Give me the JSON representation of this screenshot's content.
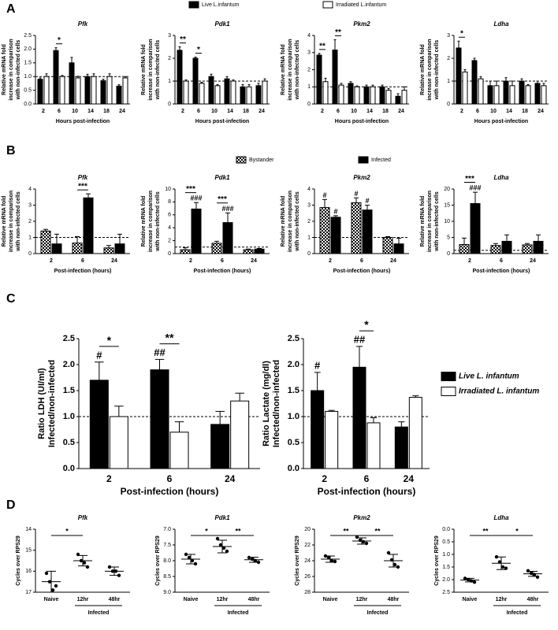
{
  "panel_labels": [
    "A",
    "B",
    "C",
    "D"
  ],
  "chart_data": [
    {
      "type": "bar",
      "title": "Pfk",
      "ylabel": [
        "Relative mRNA fold",
        "increase in comparison",
        "with non-infected cells"
      ],
      "xlabel": "Hours post-infection",
      "categories": [
        "2",
        "6",
        "10",
        "14",
        "18",
        "24"
      ],
      "ylim": [
        0,
        2.5
      ],
      "yticks": [
        {
          "value": 0,
          "label": "0.0"
        },
        0.5,
        {
          "value": 1,
          "label": "1.0"
        },
        1.5,
        {
          "value": 2,
          "label": "2.0"
        },
        2.5
      ],
      "reference_line": 1,
      "series": [
        {
          "name": "Live L.infantum",
          "color": "#000000",
          "values": [
            0.9,
            1.95,
            1.5,
            1.0,
            0.85,
            0.65
          ],
          "errors": [
            0.05,
            0.1,
            0.2,
            0.08,
            0.05,
            0.05
          ]
        },
        {
          "name": "Irradiated L.infantum",
          "color": "#ffffff",
          "values": [
            1.0,
            1.0,
            0.95,
            1.0,
            1.0,
            0.95
          ],
          "errors": [
            0.1,
            0.04,
            0.06,
            0.1,
            0.1,
            0.05
          ]
        }
      ],
      "significance": [
        null,
        "*",
        null,
        null,
        null,
        null
      ]
    },
    {
      "type": "bar",
      "title": "Pdk1",
      "ylabel": [
        "Relative mRNA fold",
        "increase in comparison",
        "with non-infected cells"
      ],
      "xlabel": "Hours post-infection",
      "categories": [
        "2",
        "6",
        "10",
        "14",
        "18",
        "24"
      ],
      "ylim": [
        0,
        3
      ],
      "yticks": [
        0,
        1,
        2,
        3
      ],
      "reference_line": 1,
      "series": [
        {
          "name": "Live L.infantum",
          "color": "#000000",
          "values": [
            2.35,
            2.0,
            1.2,
            1.1,
            0.75,
            0.8
          ],
          "errors": [
            0.15,
            0.05,
            0.1,
            0.1,
            0.1,
            0.1
          ]
        },
        {
          "name": "Irradiated L.infantum",
          "color": "#ffffff",
          "values": [
            1.0,
            0.9,
            0.8,
            1.0,
            0.75,
            1.0
          ],
          "errors": [
            0.05,
            0.05,
            0.05,
            0.05,
            0.1,
            0.1
          ]
        }
      ],
      "significance": [
        "**",
        "*",
        null,
        null,
        null,
        null
      ]
    },
    {
      "type": "bar",
      "title": "Pkm2",
      "ylabel": [
        "Relative mRNA fold",
        "increase in comparison",
        "with non-infected cells"
      ],
      "xlabel": "Hours post-infection",
      "categories": [
        "2",
        "6",
        "10",
        "14",
        "18",
        "24"
      ],
      "ylim": [
        0,
        4
      ],
      "yticks": [
        0,
        1,
        2,
        3,
        4
      ],
      "reference_line": 1,
      "series": [
        {
          "name": "Live L.infantum",
          "color": "#000000",
          "values": [
            2.85,
            3.15,
            1.2,
            1.0,
            1.0,
            0.45
          ],
          "errors": [
            0.1,
            0.6,
            0.1,
            0.1,
            0.1,
            0.15
          ]
        },
        {
          "name": "Irradiated L.infantum",
          "color": "#ffffff",
          "values": [
            1.3,
            1.1,
            1.0,
            1.0,
            0.8,
            0.8
          ],
          "errors": [
            0.2,
            0.1,
            0.05,
            0.1,
            0.1,
            0.2
          ]
        }
      ],
      "significance": [
        "**",
        "**",
        null,
        null,
        null,
        null
      ]
    },
    {
      "type": "bar",
      "title": "Ldha",
      "ylabel": [
        "Relative mRNA fold",
        "increase in comparison",
        "with non-infected cells"
      ],
      "xlabel": "Hours post-infection",
      "categories": [
        "2",
        "6",
        "10",
        "14",
        "18",
        "24"
      ],
      "ylim": [
        0,
        3
      ],
      "yticks": [
        0,
        1,
        2,
        3
      ],
      "reference_line": 1,
      "series": [
        {
          "name": "Live L.infantum",
          "color": "#000000",
          "values": [
            2.45,
            1.9,
            0.8,
            1.0,
            1.0,
            0.9
          ],
          "errors": [
            0.3,
            0.1,
            0.2,
            0.15,
            0.1,
            0.1
          ]
        },
        {
          "name": "Irradiated L.infantum",
          "color": "#ffffff",
          "values": [
            1.4,
            1.1,
            0.8,
            0.8,
            0.8,
            0.8
          ],
          "errors": [
            0.1,
            0.1,
            0.2,
            0.2,
            0.05,
            0.1
          ]
        }
      ],
      "significance": [
        "*",
        null,
        null,
        null,
        null,
        null
      ]
    },
    {
      "type": "bar",
      "title": "Pfk",
      "ylabel": [
        "Relative mRNA fold",
        "increase in comparison",
        "with non-infected cells"
      ],
      "xlabel": "Post-infection (hours)",
      "categories": [
        "2",
        "6",
        "24"
      ],
      "ylim": [
        0,
        4
      ],
      "yticks": [
        0,
        1,
        2,
        3,
        4
      ],
      "reference_line": 1,
      "series": [
        {
          "name": "Bystander",
          "color": "#000000",
          "pattern": "checker",
          "values": [
            1.4,
            0.65,
            0.35
          ],
          "errors": [
            0.1,
            0.4,
            0.15
          ]
        },
        {
          "name": "Infected",
          "color": "#000000",
          "values": [
            0.6,
            3.45,
            0.6
          ],
          "errors": [
            0.6,
            0.25,
            0.6
          ]
        }
      ],
      "significance": [
        null,
        "***",
        null
      ]
    },
    {
      "type": "bar",
      "title": "Pdk1",
      "ylabel": [
        "Relative mRNA fold",
        "increase in comparison",
        "with non-infected cells"
      ],
      "xlabel": "Post-infection (hours)",
      "categories": [
        "2",
        "6",
        "24"
      ],
      "ylim": [
        0,
        10
      ],
      "yticks": [
        0,
        2,
        4,
        6,
        8,
        10
      ],
      "reference_line": 1,
      "series": [
        {
          "name": "Bystander",
          "color": "#000000",
          "pattern": "checker",
          "values": [
            0.6,
            1.6,
            0.6
          ],
          "errors": [
            0.3,
            0.3,
            0.1
          ]
        },
        {
          "name": "Infected",
          "color": "#000000",
          "values": [
            6.9,
            4.8,
            0.7
          ],
          "errors": [
            1.0,
            1.5,
            0.1
          ],
          "significance": [
            "###",
            "###",
            null
          ]
        }
      ],
      "significance": [
        "***",
        "***",
        null
      ]
    },
    {
      "type": "bar",
      "title": "Pkm2",
      "ylabel": [
        "Relative mRNA fold",
        "increase in comparison",
        "with non-infected cells"
      ],
      "xlabel": "Post-infection (hours)",
      "categories": [
        "2",
        "6",
        "24"
      ],
      "ylim": [
        0,
        4
      ],
      "yticks": [
        0,
        1,
        2,
        3,
        4
      ],
      "reference_line": 1,
      "series": [
        {
          "name": "Bystander",
          "color": "#000000",
          "pattern": "checker",
          "values": [
            2.85,
            3.15,
            1.0
          ],
          "errors": [
            0.5,
            0.3,
            0.05
          ],
          "significance": [
            "#",
            "#",
            null
          ]
        },
        {
          "name": "Infected",
          "color": "#000000",
          "values": [
            2.25,
            2.7,
            0.6
          ],
          "errors": [
            0.1,
            0.3,
            0.35
          ],
          "significance": [
            "#",
            "#",
            null
          ]
        }
      ]
    },
    {
      "type": "bar",
      "title": "Ldha",
      "ylabel": [
        "Relative mRNA fold",
        "increase in comparison",
        "with non-infected cells"
      ],
      "xlabel": "Post-infection (hours)",
      "categories": [
        "2",
        "6",
        "24"
      ],
      "ylim": [
        0,
        20
      ],
      "yticks": [
        0,
        5,
        10,
        15,
        20
      ],
      "reference_line": 1,
      "series": [
        {
          "name": "Bystander",
          "color": "#000000",
          "pattern": "checker",
          "values": [
            2.8,
            2.5,
            2.7
          ],
          "errors": [
            2.0,
            0.6,
            0.4
          ]
        },
        {
          "name": "Infected",
          "color": "#000000",
          "values": [
            15.5,
            3.8,
            3.8
          ],
          "errors": [
            3.5,
            2.0,
            2.0
          ],
          "significance": [
            "###",
            null,
            null
          ]
        }
      ],
      "significance": [
        "***",
        null,
        null
      ]
    },
    {
      "type": "bar",
      "ylabel": [
        "Ratio LDH (UI/ml)",
        "Infected/non-infected"
      ],
      "xlabel": "Post-infection (hours)",
      "categories": [
        "2",
        "6",
        "24"
      ],
      "ylim": [
        0,
        2.5
      ],
      "yticks": [
        {
          "value": 0,
          "label": "0.0"
        },
        0.5,
        {
          "value": 1,
          "label": "1.0"
        },
        1.5,
        {
          "value": 2,
          "label": "2.0"
        },
        2.5
      ],
      "reference_line": 1,
      "series": [
        {
          "name": "Live L. infantum",
          "color": "#000000",
          "values": [
            1.7,
            1.9,
            0.85
          ],
          "errors": [
            0.35,
            0.2,
            0.25
          ],
          "significance": [
            "#",
            "##",
            null
          ]
        },
        {
          "name": "Irradiated L. infantum",
          "color": "#ffffff",
          "values": [
            1.0,
            0.7,
            1.3
          ],
          "errors": [
            0.2,
            0.2,
            0.15
          ]
        }
      ],
      "significance": [
        "*",
        "**",
        null
      ]
    },
    {
      "type": "bar",
      "ylabel": [
        "Ratio Lactate (mg/dl)",
        "Infected/non-infected"
      ],
      "xlabel": "Post-infection (hours)",
      "categories": [
        "2",
        "6",
        "24"
      ],
      "ylim": [
        0,
        2.5
      ],
      "yticks": [
        {
          "value": 0,
          "label": "0.0"
        },
        0.5,
        {
          "value": 1,
          "label": "1.0"
        },
        1.5,
        {
          "value": 2,
          "label": "2.0"
        },
        2.5
      ],
      "reference_line": 1,
      "series": [
        {
          "name": "Live L. infantum",
          "color": "#000000",
          "values": [
            1.5,
            1.95,
            0.8
          ],
          "errors": [
            0.35,
            0.4,
            0.1
          ],
          "significance": [
            "#",
            "##",
            null
          ]
        },
        {
          "name": "Irradiated L. infantum",
          "color": "#ffffff",
          "values": [
            1.1,
            0.88,
            1.37
          ],
          "errors": [
            0.02,
            0.1,
            0.03
          ]
        }
      ],
      "significance": [
        null,
        "*",
        null
      ]
    },
    {
      "type": "dot",
      "title": "Pfk",
      "ylabel": [
        "Cycles over RPS29"
      ],
      "categories": [
        "Naive",
        "12hr",
        "48hr"
      ],
      "group_label": "Infected",
      "ylim": [
        14,
        17
      ],
      "inverted": true,
      "yticks": [
        14,
        15,
        16,
        17
      ],
      "points": [
        [
          16.1,
          16.5,
          16.9,
          16.7
        ],
        [
          15.2,
          15.5,
          15.6,
          15.8
        ],
        [
          15.8,
          16.0,
          16.0,
          16.2
        ]
      ],
      "means": [
        16.5,
        15.5,
        16.0
      ],
      "sds": [
        0.5,
        0.25,
        0.2
      ],
      "pair_significance": [
        "*",
        null
      ]
    },
    {
      "type": "dot",
      "title": "Pdk1",
      "ylabel": [
        "Cycles over RPS29"
      ],
      "categories": [
        "Naive",
        "12hr",
        "48hr"
      ],
      "group_label": "Infected",
      "ylim": [
        7,
        9
      ],
      "inverted": true,
      "yticks": [
        {
          "value": 7,
          "label": "7.0"
        },
        7.5,
        {
          "value": 8,
          "label": "8.0"
        },
        8.5,
        {
          "value": 9,
          "label": "9.0"
        }
      ],
      "points": [
        [
          7.8,
          7.9,
          8.0,
          8.1
        ],
        [
          7.3,
          7.5,
          7.6,
          7.7
        ],
        [
          7.9,
          7.95,
          8.0,
          8.05
        ]
      ],
      "means": [
        7.95,
        7.55,
        7.97
      ],
      "sds": [
        0.15,
        0.2,
        0.08
      ],
      "pair_significance": [
        "*",
        "**"
      ]
    },
    {
      "type": "dot",
      "title": "Pkm2",
      "ylabel": [
        "Cycles over RPS29"
      ],
      "categories": [
        "Naive",
        "12hr",
        "48hr"
      ],
      "group_label": "Infected",
      "ylim": [
        20,
        28
      ],
      "inverted": true,
      "yticks": [
        20,
        22,
        24,
        26,
        28
      ],
      "points": [
        [
          23.4,
          23.6,
          24.0,
          24.1
        ],
        [
          21.0,
          21.4,
          21.6,
          21.8
        ],
        [
          23.0,
          23.9,
          24.5,
          24.8
        ]
      ],
      "means": [
        23.8,
        21.5,
        24.0
      ],
      "sds": [
        0.4,
        0.4,
        0.8
      ],
      "pair_significance": [
        "**",
        "**"
      ]
    },
    {
      "type": "dot",
      "title": "Ldha",
      "ylabel": [
        "Cycles over RPS29"
      ],
      "categories": [
        "Naive",
        "12hr",
        "48hr"
      ],
      "group_label": "Infected",
      "ylim": [
        0,
        2.5
      ],
      "inverted": true,
      "yticks": [
        {
          "value": 0,
          "label": "0.0"
        },
        0.5,
        {
          "value": 1,
          "label": "1.0"
        },
        1.5,
        {
          "value": 2,
          "label": "2.0"
        },
        2.5
      ],
      "points": [
        [
          1.95,
          2.0,
          2.05,
          2.1
        ],
        [
          1.1,
          1.3,
          1.5,
          1.55
        ],
        [
          1.65,
          1.75,
          1.8,
          1.9
        ]
      ],
      "means": [
        2.02,
        1.35,
        1.77
      ],
      "sds": [
        0.07,
        0.25,
        0.1
      ],
      "pair_significance": [
        "**",
        "*"
      ]
    }
  ]
}
